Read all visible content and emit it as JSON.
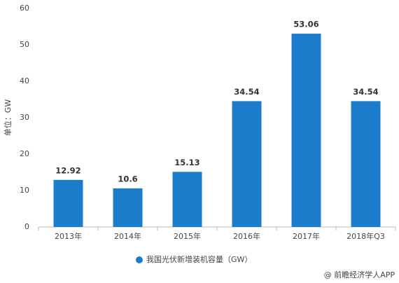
{
  "chart_data": {
    "type": "bar",
    "y_label": "单位：GW",
    "categories": [
      "2013年",
      "2014年",
      "2015年",
      "2016年",
      "2017年",
      "2018年Q3"
    ],
    "series": [
      {
        "name": "我国光伏新增装机容量（GW）",
        "color": "#1b7ccb",
        "values": [
          12.92,
          10.6,
          15.13,
          34.54,
          53.06,
          34.54
        ]
      }
    ],
    "ylim": [
      0,
      60
    ],
    "yticks": [
      0,
      10,
      20,
      30,
      40,
      50,
      60
    ],
    "grid": false,
    "legend": "bottom",
    "source": "@ 前瞻经济学人APP"
  }
}
